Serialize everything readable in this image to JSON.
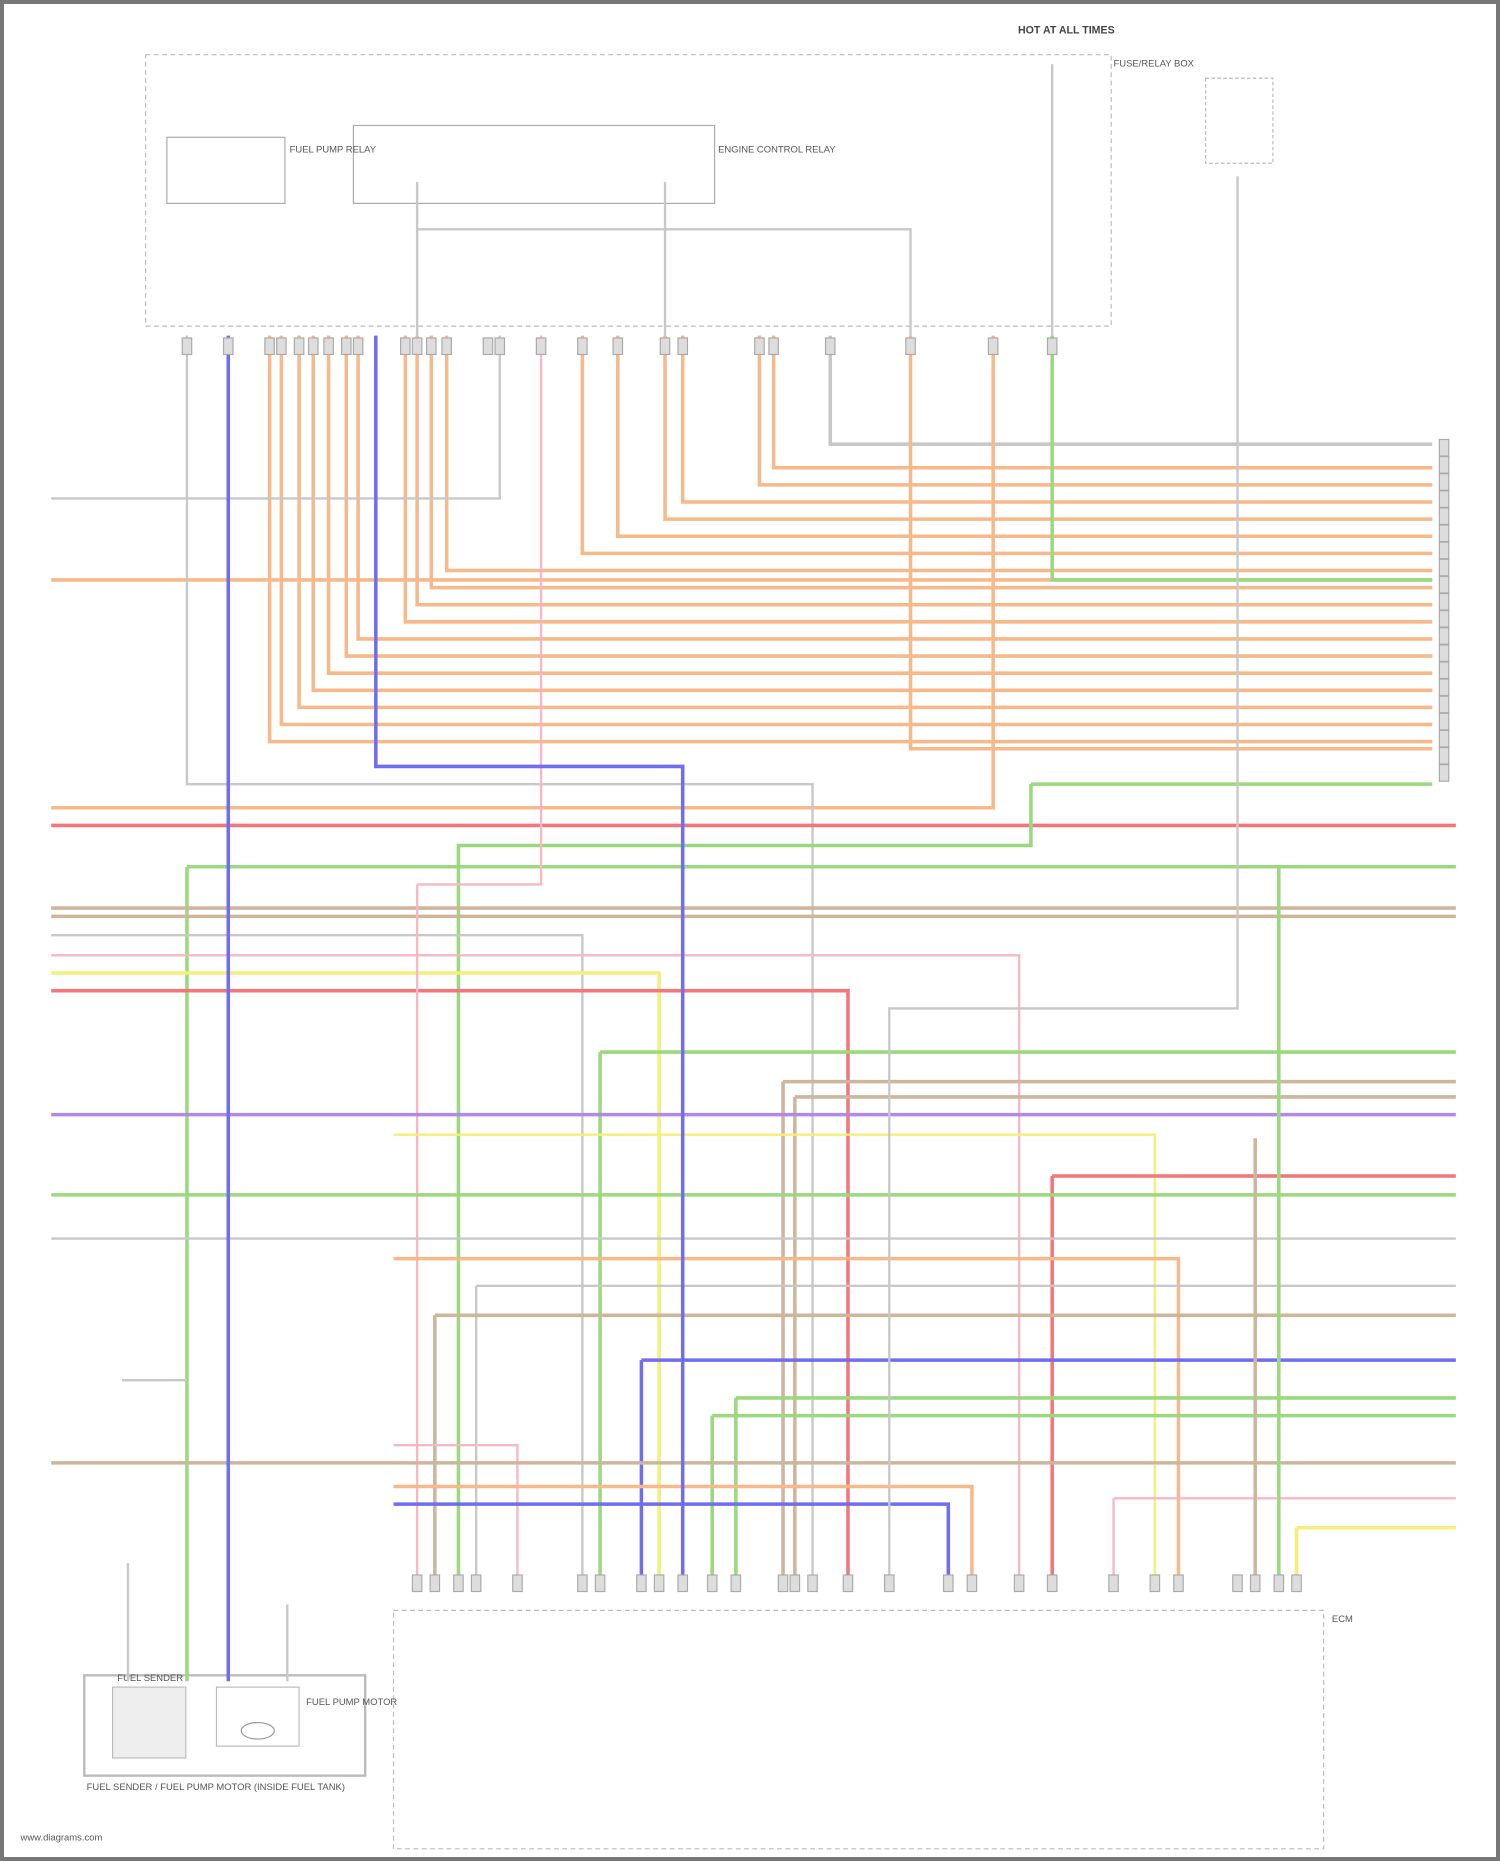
{
  "labels": {
    "power_source": "HOT AT ALL TIMES",
    "fuse_box": "FUSE/RELAY BOX",
    "fuel_pump_relay": "FUEL PUMP RELAY",
    "engine_control_relay": "ENGINE CONTROL RELAY",
    "fuel_sender_assembly": "FUEL SENDER / FUEL PUMP MOTOR (INSIDE FUEL TANK)",
    "fuel_sender": "FUEL SENDER",
    "fuel_pump_motor": "FUEL PUMP MOTOR",
    "ecm": "ECM",
    "footer": "www.diagrams.com"
  },
  "wire_colors": {
    "orange": "#f7b98a",
    "gray": "#c8c8c8",
    "green": "#9ad97e",
    "red": "#f2767a",
    "blue": "#6f6df0",
    "purple": "#b08ae6",
    "yellow": "#f5ee7a",
    "pink": "#f6b8c6",
    "tan": "#cdb69c",
    "lightgreen": "#c8e8a8"
  }
}
